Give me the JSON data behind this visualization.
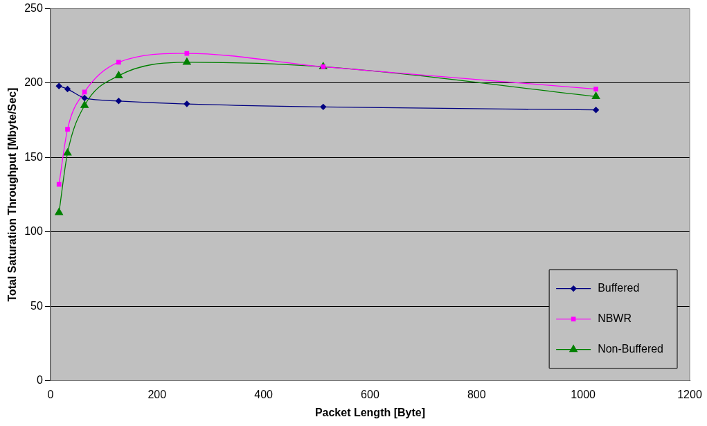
{
  "chart_data": {
    "type": "line",
    "xlabel": "Packet Length [Byte]",
    "ylabel": "Total Saturation Throughput [Mbyte/Sec]",
    "x": [
      16,
      32,
      64,
      128,
      256,
      512,
      1024
    ],
    "series": [
      {
        "name": "Buffered",
        "color": "#000080",
        "marker": "diamond",
        "values": [
          198,
          196,
          190,
          188,
          186,
          184,
          182
        ]
      },
      {
        "name": "NBWR",
        "color": "#ff00ff",
        "marker": "square",
        "values": [
          132,
          169,
          194,
          214,
          220,
          211,
          196
        ]
      },
      {
        "name": "Non-Buffered",
        "color": "#008000",
        "marker": "triangle",
        "values": [
          113,
          153,
          185,
          205,
          214,
          211,
          191
        ]
      }
    ],
    "xlim": [
      0,
      1200
    ],
    "xticks": [
      0,
      200,
      400,
      600,
      800,
      1000,
      1200
    ],
    "ylim": [
      0,
      250
    ],
    "yticks": [
      0,
      50,
      100,
      150,
      200,
      250
    ],
    "grid": "y",
    "legend": "bottom right",
    "line_style": "solid"
  }
}
